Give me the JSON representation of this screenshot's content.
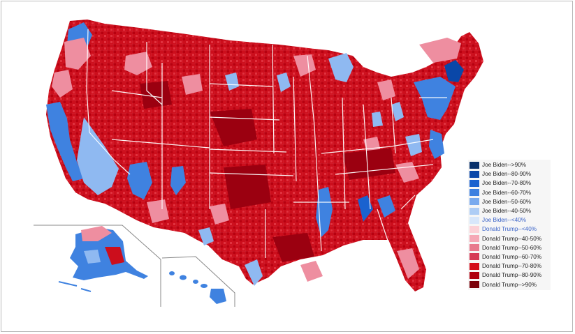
{
  "legend": {
    "items": [
      {
        "label": "Joe Biden-->90%",
        "color": "#08306b",
        "highlight": false
      },
      {
        "label": "Joe Biden--80-90%",
        "color": "#0a47a8",
        "highlight": false
      },
      {
        "label": "Joe Biden--70-80%",
        "color": "#1a62cf",
        "highlight": false
      },
      {
        "label": "Joe Biden--60-70%",
        "color": "#3d80e0",
        "highlight": false
      },
      {
        "label": "Joe Biden--50-60%",
        "color": "#79aaee",
        "highlight": false
      },
      {
        "label": "Joe Biden--40-50%",
        "color": "#aecdf5",
        "highlight": false
      },
      {
        "label": "Joe Biden--<40%",
        "color": "#d8e7fb",
        "highlight": true
      },
      {
        "label": "Donald Trump--<40%",
        "color": "#fcd1d7",
        "highlight": true
      },
      {
        "label": "Donald Trump--40-50%",
        "color": "#f5a8b6",
        "highlight": false
      },
      {
        "label": "Donald Trump--50-60%",
        "color": "#e8798d",
        "highlight": false
      },
      {
        "label": "Donald Trump--60-70%",
        "color": "#d63a55",
        "highlight": false
      },
      {
        "label": "Donald Trump--70-80%",
        "color": "#d40d1a",
        "highlight": false
      },
      {
        "label": "Donald Trump--80-90%",
        "color": "#b0000f",
        "highlight": false
      },
      {
        "label": "Donald Trump-->90%",
        "color": "#7a0008",
        "highlight": false
      }
    ]
  },
  "colors": {
    "trump_dominant": "#cc0e1c",
    "biden_dominant": "#3f82e0",
    "state_border": "#ffffff"
  }
}
